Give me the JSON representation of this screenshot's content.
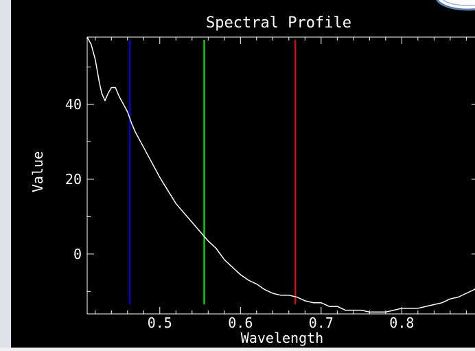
{
  "chart_data": {
    "type": "line",
    "title": "Spectral Profile",
    "xlabel": "Wavelength",
    "ylabel": "Value",
    "xlim": [
      0.41,
      0.895
    ],
    "ylim": [
      -16,
      58
    ],
    "xticks": [
      0.5,
      0.6,
      0.7,
      0.8
    ],
    "xtick_labels": [
      "0.5",
      "0.6",
      "0.7",
      "0.8"
    ],
    "yticks": [
      0,
      20,
      40
    ],
    "ytick_labels": [
      "0",
      "20",
      "40"
    ],
    "grid": false,
    "background": "#000000",
    "foreground": "#ffffff",
    "series": [
      {
        "color": "#ffffff",
        "x": [
          0.41,
          0.415,
          0.42,
          0.425,
          0.428,
          0.432,
          0.436,
          0.44,
          0.445,
          0.45,
          0.455,
          0.46,
          0.465,
          0.47,
          0.48,
          0.49,
          0.5,
          0.51,
          0.52,
          0.53,
          0.54,
          0.55,
          0.56,
          0.57,
          0.58,
          0.59,
          0.6,
          0.61,
          0.62,
          0.63,
          0.64,
          0.65,
          0.66,
          0.67,
          0.68,
          0.69,
          0.7,
          0.71,
          0.72,
          0.73,
          0.74,
          0.75,
          0.76,
          0.77,
          0.78,
          0.79,
          0.8,
          0.81,
          0.82,
          0.83,
          0.84,
          0.85,
          0.86,
          0.87,
          0.88,
          0.89,
          0.895
        ],
        "y": [
          58,
          56,
          52,
          46,
          43,
          41,
          43,
          44.5,
          44.5,
          42,
          40,
          38,
          35,
          32.5,
          28.5,
          24.5,
          20.5,
          17,
          13.5,
          11,
          8.5,
          6,
          3.5,
          1.5,
          -1.5,
          -3.5,
          -5.5,
          -7,
          -8,
          -9.5,
          -10.5,
          -11,
          -11,
          -11.5,
          -12.5,
          -13,
          -13,
          -14,
          -14,
          -15,
          -15,
          -15,
          -15.5,
          -15.5,
          -15.5,
          -15,
          -14.5,
          -14.5,
          -14.5,
          -14,
          -13.5,
          -13,
          -12,
          -11.5,
          -10.5,
          -9.5,
          -8.5
        ]
      }
    ],
    "markers": [
      {
        "x": 0.463,
        "color": "#0000ff"
      },
      {
        "x": 0.555,
        "color": "#00ff00"
      },
      {
        "x": 0.668,
        "color": "#ff0000"
      }
    ]
  }
}
